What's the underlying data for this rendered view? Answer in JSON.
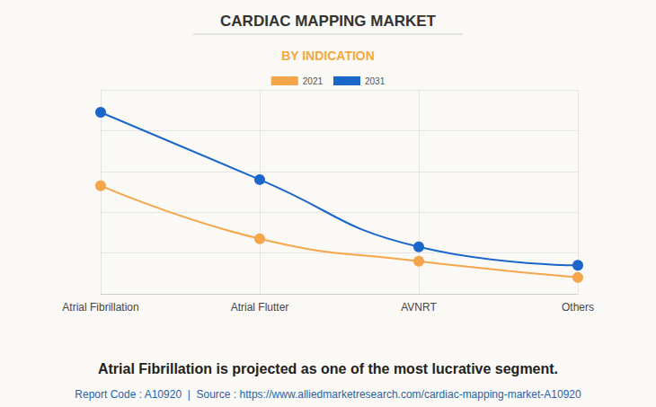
{
  "chart_data": {
    "type": "line",
    "title": "CARDIAC MAPPING MARKET",
    "subtitle": "BY INDICATION",
    "footnote": "Atrial Fibrillation is projected as one of the most lucrative segment.",
    "source": "Report Code : A10920  |  Source : https://www.alliedmarketresearch.com/cardiac-mapping-market-A10920",
    "categories": [
      "Atrial Fibrillation",
      "Atrial Flutter",
      "AVNRT",
      "Others"
    ],
    "series": [
      {
        "name": "2021",
        "color": "#f5a54a",
        "values": [
          53,
          27,
          16,
          8
        ]
      },
      {
        "name": "2031",
        "color": "#1b66c9",
        "values": [
          89,
          56,
          23,
          14
        ]
      }
    ],
    "ylim": [
      0,
      100
    ],
    "yticks": [
      0,
      20,
      40,
      60,
      80,
      100
    ],
    "grid": true,
    "legend": "top",
    "tick_labels": "x",
    "marker": "circle",
    "line_style": "smooth"
  }
}
